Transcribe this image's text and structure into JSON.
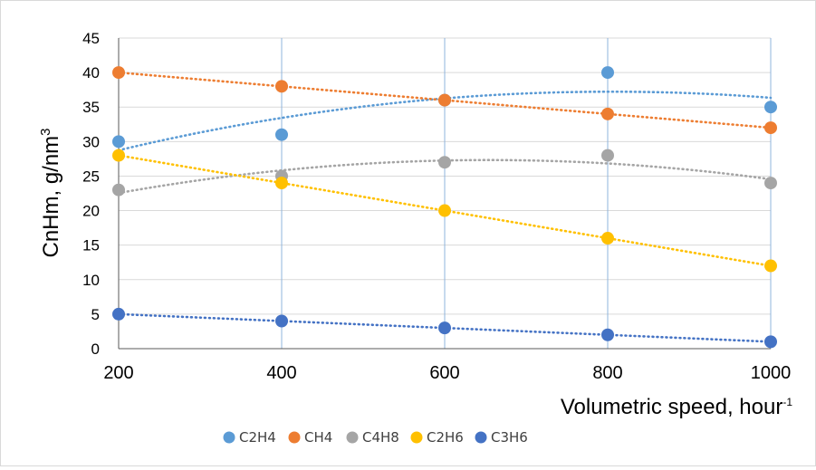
{
  "chart_data": {
    "type": "scatter",
    "title": "",
    "xlabel": "Volumetric speed, hour",
    "xlabel_superscript": "-1",
    "ylabel": "CnHm, g/nm",
    "ylabel_superscript": "3",
    "xlim": [
      200,
      1000
    ],
    "ylim": [
      0,
      45
    ],
    "xticks": [
      200,
      400,
      600,
      800,
      1000
    ],
    "yticks": [
      0,
      5,
      10,
      15,
      20,
      25,
      30,
      35,
      40,
      45
    ],
    "grid": "horizontal and vertical",
    "legend_position": "bottom",
    "trendlines": "dotted polynomial",
    "series": [
      {
        "name": "C2H4",
        "color": "#5b9bd5",
        "x": [
          200,
          400,
          600,
          800,
          1000
        ],
        "y": [
          30,
          31,
          36,
          40,
          35
        ]
      },
      {
        "name": "CH4",
        "color": "#ed7d31",
        "x": [
          200,
          400,
          600,
          800,
          1000
        ],
        "y": [
          40,
          38,
          36,
          34,
          32
        ]
      },
      {
        "name": "C4H8",
        "color": "#a5a5a5",
        "x": [
          200,
          400,
          600,
          800,
          1000
        ],
        "y": [
          23,
          25,
          27,
          28,
          24
        ]
      },
      {
        "name": "C2H6",
        "color": "#ffc000",
        "x": [
          200,
          400,
          600,
          800,
          1000
        ],
        "y": [
          28,
          24,
          20,
          16,
          12
        ]
      },
      {
        "name": "C3H6",
        "color": "#4472c4",
        "x": [
          200,
          400,
          600,
          800,
          1000
        ],
        "y": [
          5,
          4,
          3,
          2,
          1
        ]
      }
    ]
  }
}
